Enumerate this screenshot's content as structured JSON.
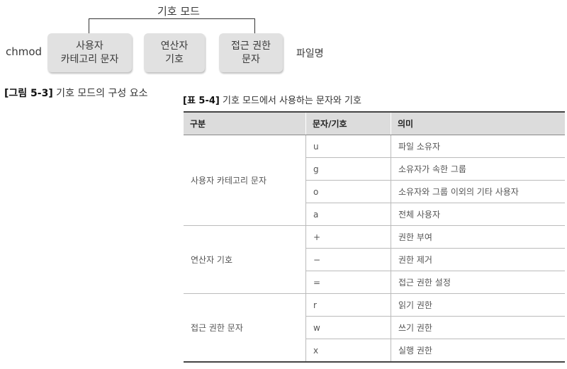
{
  "diagram": {
    "mode_label": "기호 모드",
    "command": "chmod",
    "boxes": {
      "category": [
        "사용자",
        "카테고리 문자"
      ],
      "operator": [
        "연산자",
        "기호"
      ],
      "access": [
        "접근 권한",
        "문자"
      ]
    },
    "filename": "파일명"
  },
  "figure_caption": {
    "number": "[그림 5-3]",
    "text": " 기호 모드의 구성 요소"
  },
  "table_caption": {
    "number": "[표 5-4]",
    "text": " 기호 모드에서 사용하는 문자와 기호"
  },
  "table": {
    "headers": [
      "구분",
      "문자/기호",
      "의미"
    ],
    "groups": [
      {
        "category": "사용자 카테고리 문자",
        "rows": [
          [
            "u",
            "파일 소유자"
          ],
          [
            "g",
            "소유자가 속한 그룹"
          ],
          [
            "o",
            "소유자와 그룹 이외의 기타 사용자"
          ],
          [
            "a",
            "전체 사용자"
          ]
        ]
      },
      {
        "category": "연산자 기호",
        "rows": [
          [
            "+",
            "권한 부여"
          ],
          [
            "−",
            "권한 제거"
          ],
          [
            "=",
            "접근 권한 설정"
          ]
        ]
      },
      {
        "category": "접근 권한 문자",
        "rows": [
          [
            "r",
            "읽기 권한"
          ],
          [
            "w",
            "쓰기 권한"
          ],
          [
            "x",
            "실행 권한"
          ]
        ]
      }
    ]
  }
}
